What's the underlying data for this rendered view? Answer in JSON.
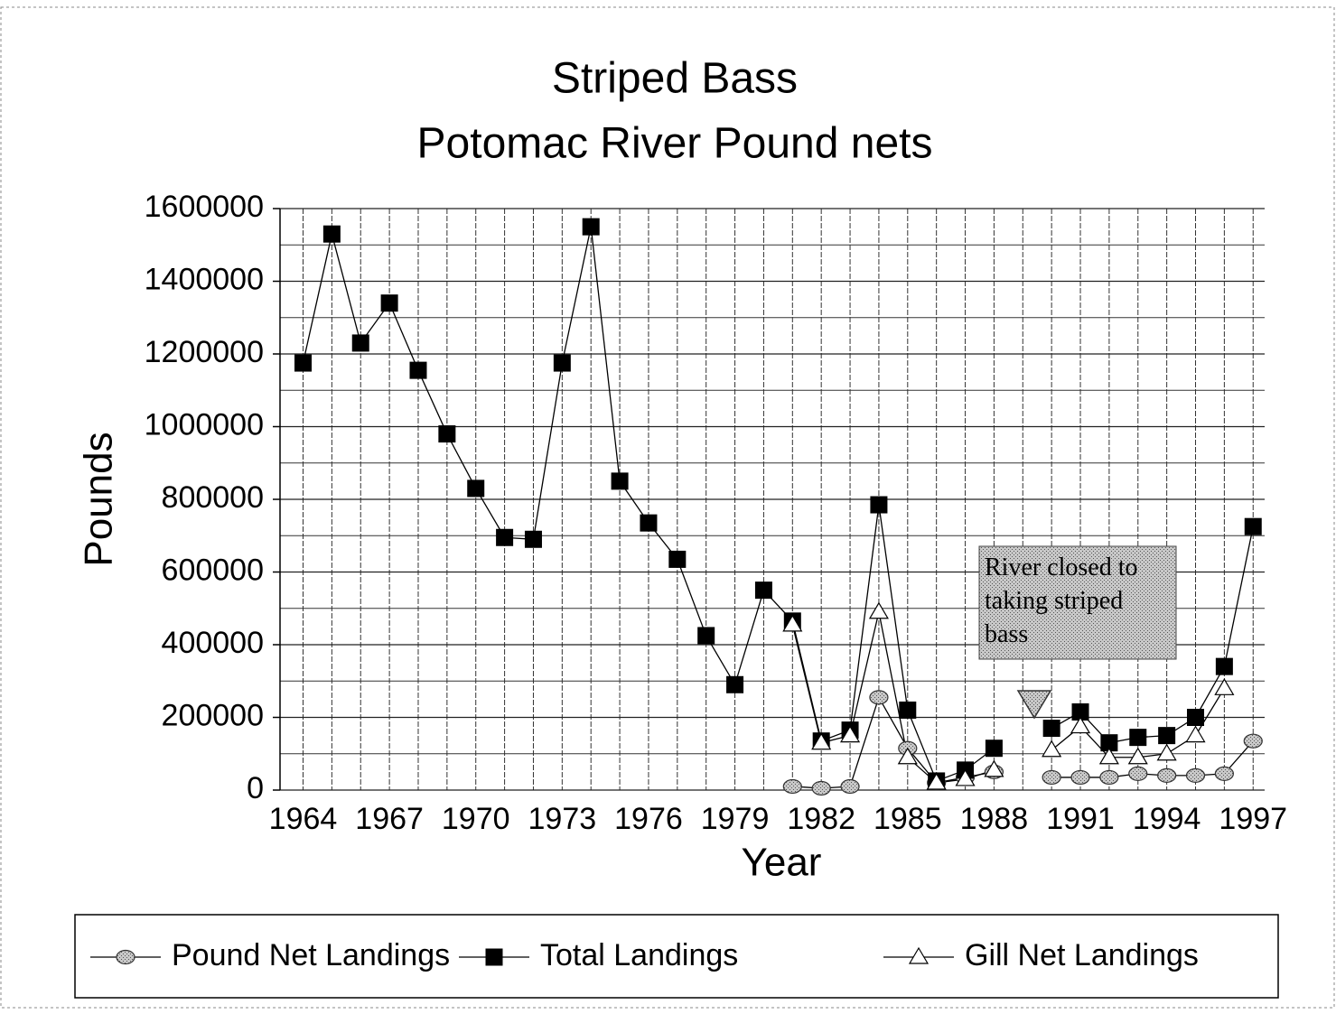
{
  "chart_data": {
    "type": "line",
    "title": [
      "Striped Bass",
      "Potomac River Pound nets"
    ],
    "xlabel": "Year",
    "ylabel": "Pounds",
    "x": [
      1964,
      1965,
      1966,
      1967,
      1968,
      1969,
      1970,
      1971,
      1972,
      1973,
      1974,
      1975,
      1976,
      1977,
      1978,
      1979,
      1980,
      1981,
      1982,
      1983,
      1984,
      1985,
      1986,
      1987,
      1988,
      1989,
      1990,
      1991,
      1992,
      1993,
      1994,
      1995,
      1996,
      1997
    ],
    "xlim": [
      1963.2,
      1997.4
    ],
    "xticks": [
      1964,
      1967,
      1970,
      1973,
      1976,
      1979,
      1982,
      1985,
      1988,
      1991,
      1994,
      1997
    ],
    "ylim": [
      0,
      1600000
    ],
    "yticks": [
      0,
      200000,
      400000,
      600000,
      800000,
      1000000,
      1200000,
      1400000,
      1600000
    ],
    "yminorticks": [
      100000,
      300000,
      500000,
      700000,
      900000,
      1100000,
      1300000,
      1500000
    ],
    "grid": true,
    "legend": "bottom",
    "series": [
      {
        "name": "Pound Net Landings",
        "marker": "circle",
        "color": "#9a9a9a",
        "values": [
          null,
          null,
          null,
          null,
          null,
          null,
          null,
          null,
          null,
          null,
          null,
          null,
          null,
          null,
          null,
          null,
          null,
          10000,
          5000,
          10000,
          255000,
          115000,
          20000,
          35000,
          50000,
          null,
          35000,
          35000,
          35000,
          45000,
          40000,
          40000,
          45000,
          135000
        ]
      },
      {
        "name": "Total Landings",
        "marker": "square",
        "color": "#000000",
        "values": [
          1175000,
          1530000,
          1230000,
          1340000,
          1155000,
          980000,
          830000,
          695000,
          690000,
          1175000,
          1550000,
          850000,
          735000,
          635000,
          425000,
          290000,
          550000,
          465000,
          135000,
          165000,
          785000,
          220000,
          25000,
          55000,
          115000,
          null,
          170000,
          215000,
          130000,
          145000,
          150000,
          200000,
          340000,
          725000
        ]
      },
      {
        "name": "Gill Net Landings",
        "marker": "triangle",
        "color": "#ffffff",
        "values": [
          null,
          null,
          null,
          null,
          null,
          null,
          null,
          null,
          null,
          null,
          null,
          null,
          null,
          null,
          null,
          null,
          null,
          455000,
          130000,
          150000,
          490000,
          90000,
          20000,
          30000,
          55000,
          null,
          110000,
          175000,
          90000,
          90000,
          100000,
          150000,
          280000,
          null
        ]
      }
    ],
    "annotations": [
      {
        "text": "River closed to taking striped bass"
      }
    ]
  }
}
